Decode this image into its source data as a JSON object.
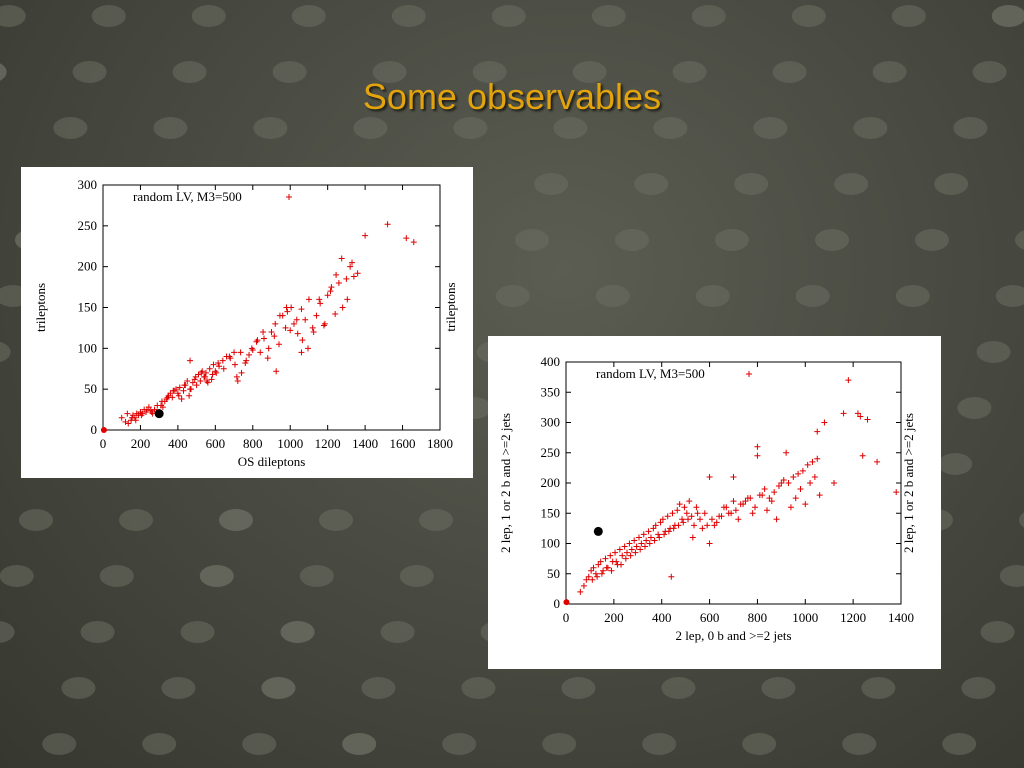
{
  "slide": {
    "title": "Some observables"
  },
  "chart_data": [
    {
      "type": "scatter",
      "title": "",
      "xlabel": "OS dileptons",
      "ylabel": "trileptons",
      "xlim": [
        0,
        1800
      ],
      "ylim": [
        0,
        300
      ],
      "xticks": [
        "0",
        "200",
        "400",
        "600",
        "800",
        "1000",
        "1200",
        "1400",
        "1600",
        "1800"
      ],
      "yticks": [
        "0",
        "50",
        "100",
        "150",
        "200",
        "250",
        "300"
      ],
      "legend": {
        "position": "top-left",
        "label": "random LV, M3=500"
      },
      "grid": false,
      "series": [
        {
          "name": "random LV, M3=500",
          "marker": "plus",
          "color": "#e00000",
          "x": [
            100,
            120,
            135,
            150,
            160,
            170,
            180,
            190,
            200,
            210,
            220,
            230,
            245,
            255,
            265,
            275,
            285,
            300,
            310,
            320,
            330,
            340,
            350,
            360,
            370,
            380,
            390,
            400,
            410,
            420,
            430,
            440,
            450,
            460,
            470,
            480,
            490,
            500,
            510,
            520,
            530,
            540,
            550,
            560,
            570,
            580,
            590,
            600,
            620,
            640,
            660,
            680,
            700,
            720,
            740,
            760,
            780,
            800,
            820,
            840,
            860,
            880,
            900,
            920,
            940,
            960,
            980,
            1000,
            1020,
            1040,
            1060,
            1080,
            1100,
            1120,
            1140,
            1160,
            1180,
            1200,
            1220,
            1240,
            1260,
            1280,
            1300,
            1320,
            1340,
            1360,
            1400,
            1520,
            1620,
            1660,
            130,
            155,
            175,
            205,
            235,
            260,
            290,
            315,
            345,
            375,
            405,
            435,
            465,
            495,
            525,
            555,
            585,
            615,
            645,
            675,
            705,
            735,
            765,
            795,
            825,
            855,
            885,
            915,
            945,
            975,
            1005,
            1035,
            1065,
            1095,
            1125,
            1155,
            1185,
            1215,
            1245,
            1275,
            1305,
            1330,
            465,
            545,
            605,
            715,
            925,
            985,
            1060
          ],
          "y": [
            15,
            10,
            8,
            12,
            18,
            15,
            20,
            18,
            22,
            20,
            25,
            22,
            28,
            24,
            20,
            25,
            22,
            22,
            30,
            28,
            35,
            38,
            42,
            45,
            40,
            48,
            50,
            45,
            52,
            38,
            48,
            55,
            60,
            42,
            50,
            58,
            62,
            55,
            68,
            60,
            72,
            65,
            70,
            58,
            75,
            62,
            80,
            72,
            78,
            85,
            90,
            88,
            95,
            60,
            70,
            82,
            92,
            98,
            108,
            95,
            112,
            88,
            120,
            130,
            105,
            140,
            150,
            122,
            130,
            118,
            148,
            135,
            160,
            125,
            140,
            155,
            128,
            165,
            175,
            142,
            180,
            150,
            185,
            200,
            188,
            192,
            238,
            252,
            235,
            230,
            20,
            15,
            12,
            18,
            25,
            22,
            30,
            35,
            40,
            48,
            42,
            55,
            50,
            65,
            70,
            60,
            68,
            82,
            75,
            90,
            80,
            95,
            85,
            100,
            110,
            120,
            100,
            115,
            140,
            125,
            150,
            135,
            110,
            100,
            120,
            160,
            130,
            170,
            190,
            210,
            160,
            205,
            85,
            65,
            70,
            65,
            72,
            145,
            95
          ]
        },
        {
          "name": "",
          "marker": "dot",
          "color": "#000000",
          "x": [
            300
          ],
          "y": [
            20
          ]
        },
        {
          "name": "",
          "marker": "dot",
          "color": "#e00000",
          "x": [
            5
          ],
          "y": [
            0
          ]
        }
      ]
    },
    {
      "type": "scatter",
      "title": "",
      "xlabel": "2 lep, 0 b and >=2 jets",
      "ylabel": "2 lep, 1 or 2 b and >=2 jets",
      "xlim": [
        0,
        1400
      ],
      "ylim": [
        0,
        400
      ],
      "xticks": [
        "0",
        "200",
        "400",
        "600",
        "800",
        "1000",
        "1200",
        "1400"
      ],
      "yticks": [
        "0",
        "50",
        "100",
        "150",
        "200",
        "250",
        "300",
        "350",
        "400"
      ],
      "legend": {
        "position": "top-left",
        "label": "random LV, M3=500"
      },
      "grid": false,
      "series": [
        {
          "name": "random LV, M3=500",
          "marker": "plus",
          "color": "#e00000",
          "x": [
            60,
            75,
            85,
            95,
            105,
            115,
            125,
            135,
            145,
            155,
            165,
            175,
            185,
            195,
            205,
            215,
            225,
            235,
            245,
            255,
            265,
            275,
            285,
            295,
            305,
            315,
            325,
            335,
            345,
            355,
            365,
            375,
            385,
            395,
            405,
            415,
            425,
            435,
            445,
            455,
            465,
            475,
            485,
            495,
            505,
            515,
            525,
            535,
            545,
            560,
            580,
            600,
            620,
            640,
            660,
            680,
            700,
            720,
            740,
            760,
            780,
            800,
            820,
            840,
            860,
            880,
            900,
            920,
            940,
            960,
            980,
            1000,
            1020,
            1040,
            1060,
            1080,
            1120,
            1160,
            1180,
            1220,
            1240,
            1260,
            1300,
            1380,
            110,
            130,
            150,
            170,
            190,
            210,
            230,
            250,
            270,
            290,
            310,
            330,
            350,
            370,
            390,
            410,
            430,
            450,
            470,
            490,
            510,
            530,
            550,
            570,
            590,
            610,
            630,
            650,
            670,
            690,
            710,
            730,
            750,
            770,
            790,
            810,
            830,
            850,
            870,
            890,
            910,
            930,
            950,
            970,
            990,
            1010,
            1030,
            1050,
            440,
            600,
            700,
            800,
            1050,
            1230
          ],
          "y": [
            20,
            30,
            40,
            45,
            55,
            60,
            50,
            65,
            70,
            55,
            75,
            60,
            80,
            70,
            85,
            65,
            90,
            80,
            95,
            85,
            100,
            90,
            105,
            95,
            110,
            100,
            115,
            105,
            120,
            110,
            125,
            130,
            115,
            135,
            140,
            120,
            145,
            125,
            150,
            130,
            155,
            165,
            140,
            160,
            150,
            170,
            145,
            130,
            160,
            140,
            150,
            210,
            130,
            145,
            160,
            150,
            170,
            140,
            165,
            175,
            150,
            260,
            180,
            155,
            170,
            140,
            200,
            250,
            160,
            175,
            190,
            165,
            200,
            210,
            180,
            300,
            200,
            315,
            370,
            315,
            245,
            305,
            235,
            185,
            40,
            45,
            50,
            60,
            55,
            70,
            65,
            75,
            80,
            85,
            90,
            95,
            100,
            105,
            110,
            115,
            120,
            125,
            130,
            135,
            140,
            110,
            150,
            125,
            130,
            140,
            135,
            145,
            160,
            150,
            155,
            165,
            170,
            175,
            160,
            180,
            190,
            175,
            185,
            195,
            205,
            200,
            210,
            215,
            220,
            230,
            235,
            240,
            45,
            100,
            210,
            245,
            285,
            310
          ]
        },
        {
          "name": "",
          "marker": "dot",
          "color": "#000000",
          "x": [
            135
          ],
          "y": [
            120
          ]
        },
        {
          "name": "",
          "marker": "dot",
          "color": "#e00000",
          "x": [
            2
          ],
          "y": [
            3
          ]
        }
      ]
    }
  ]
}
